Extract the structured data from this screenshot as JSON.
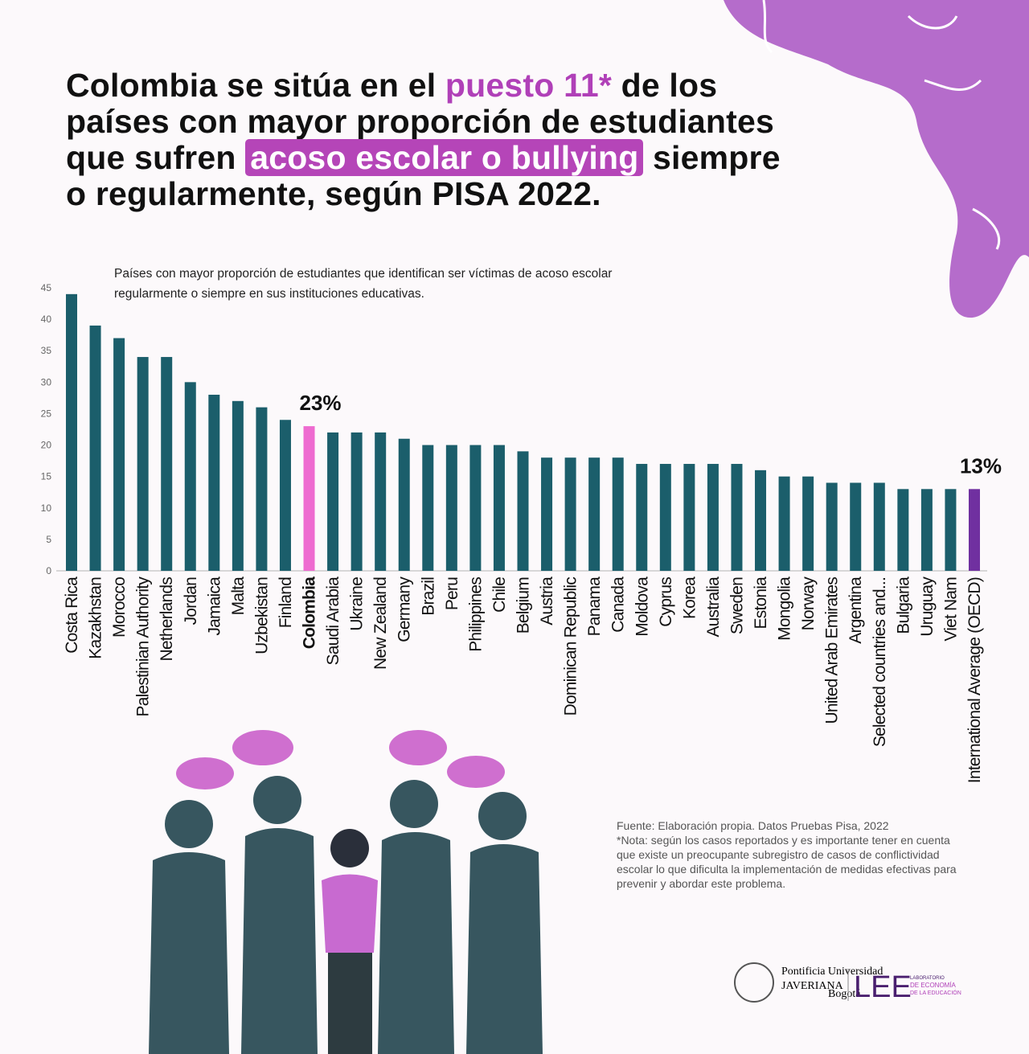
{
  "title": {
    "part1": "Colombia se sitúa en el ",
    "highlight1": "puesto 11*",
    "part2": " de los países con mayor proporción de estudiantes que sufren ",
    "highlight2": "acoso escolar o bullying",
    "part3": " siempre o regularmente, según PISA 2022."
  },
  "subtitle": "Países con mayor proporción de estudiantes que identifican ser víctimas de acoso escolar regularmente o siempre en sus instituciones educativas.",
  "chart_data": {
    "type": "bar",
    "title": "",
    "xlabel": "",
    "ylabel": "",
    "ylim": [
      0,
      45
    ],
    "yticks": [
      0,
      5,
      10,
      15,
      20,
      25,
      30,
      35,
      40,
      45
    ],
    "grid": false,
    "categories": [
      "Costa Rica",
      "Kazakhstan",
      "Morocco",
      "Palestinian Authority",
      "Netherlands",
      "Jordan",
      "Jamaica",
      "Malta",
      "Uzbekistan",
      "Finland",
      "Colombia",
      "Saudi Arabia",
      "Ukraine",
      "New Zealand",
      "Germany",
      "Brazil",
      "Peru",
      "Philippines",
      "Chile",
      "Belgium",
      "Austria",
      "Dominican Republic",
      "Panama",
      "Canada",
      "Moldova",
      "Cyprus",
      "Korea",
      "Australia",
      "Sweden",
      "Estonia",
      "Mongolia",
      "Norway",
      "United Arab Emirates",
      "Argentina",
      "Selected countries and...",
      "Bulgaria",
      "Uruguay",
      "Viet Nam",
      "International Average (OECD)"
    ],
    "values": [
      44,
      39,
      37,
      34,
      34,
      30,
      28,
      27,
      26,
      24,
      23,
      22,
      22,
      22,
      21,
      20,
      20,
      20,
      20,
      19,
      18,
      18,
      18,
      18,
      17,
      17,
      17,
      17,
      17,
      16,
      15,
      15,
      14,
      14,
      14,
      13,
      13,
      13,
      13
    ],
    "colors": {
      "default": "#1b5e6b",
      "Colombia": "#ee6bd0",
      "International Average (OECD)": "#7030a0"
    },
    "annotations": [
      {
        "category": "Colombia",
        "text": "23%"
      },
      {
        "category": "International Average (OECD)",
        "text": "13%"
      }
    ]
  },
  "source": {
    "line1": "Fuente: Elaboración propia. Datos Pruebas Pisa, 2022",
    "note": "*Nota: según los casos reportados y es importante tener en cuenta que existe un preocupante subregistro de casos de conflictividad escolar lo que dificulta la implementación de medidas efectivas para prevenir y abordar este problema."
  },
  "logos": {
    "javeriana_small": "Pontificia Universidad",
    "javeriana": "JAVERIANA",
    "javeriana_city": "Bogotá",
    "lee": "LEE",
    "lee_sub1": "LABORATORIO",
    "lee_sub2": "DE ECONOMÍA",
    "lee_sub3": "DE LA EDUCACIÓN"
  },
  "colors": {
    "accent": "#b545b8",
    "blob": "#b56ccb",
    "bar": "#1b5e6b",
    "figures": "#37565f"
  }
}
